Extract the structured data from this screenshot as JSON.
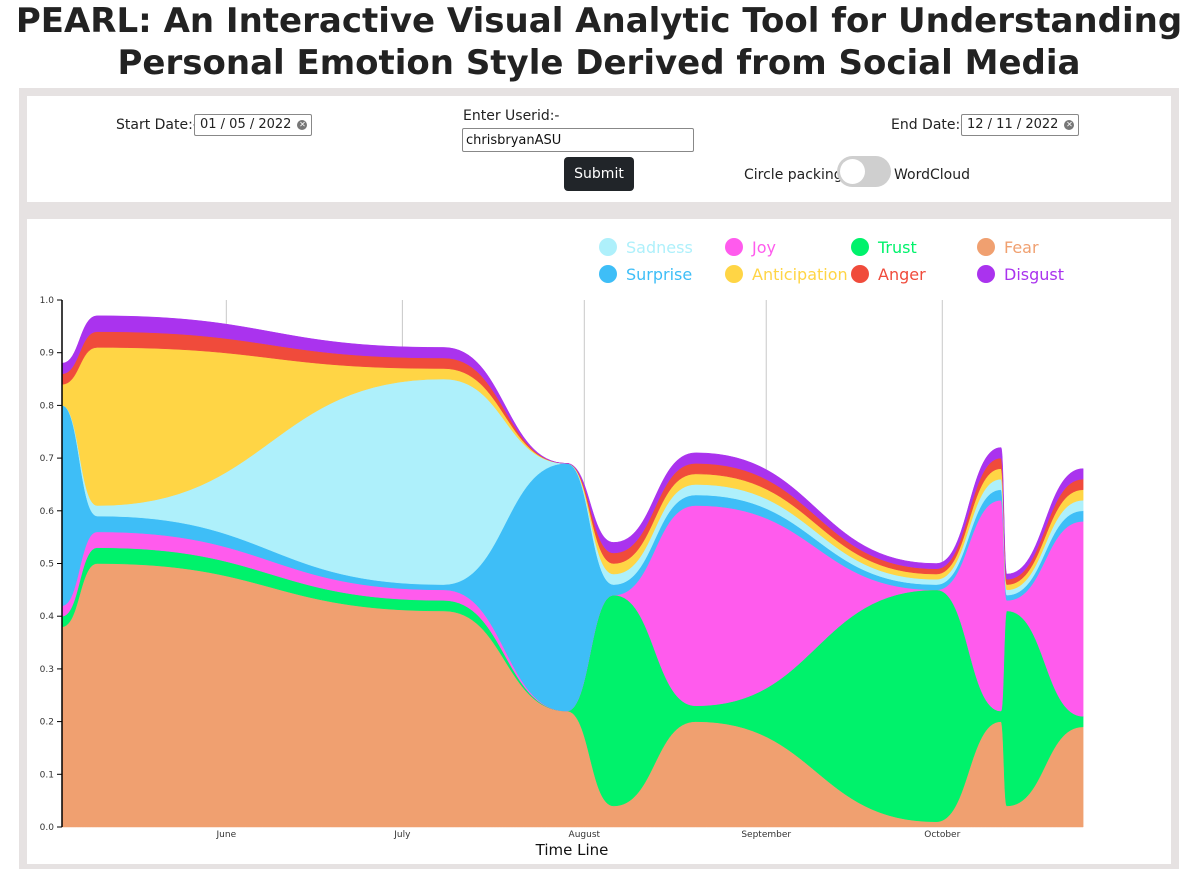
{
  "header": {
    "title_line1": "PEARL: An Interactive Visual Analytic Tool for Understanding",
    "title_line2": "Personal Emotion Style Derived from Social Media"
  },
  "controls": {
    "start_date_label": "Start Date:-",
    "start_date_value": "01 / 05 / 2022",
    "userid_label": "Enter Userid:-",
    "userid_value": "chrisbryanASU",
    "submit_label": "Submit",
    "end_date_label": "End Date:-",
    "end_date_value": "12 / 11 / 2022",
    "toggle_left_label": "Circle packing",
    "toggle_right_label": "WordCloud",
    "toggle_on": false
  },
  "chart_data": {
    "type": "area",
    "xlabel": "Time Line",
    "ylabel": "",
    "ylim": [
      0,
      1.0
    ],
    "y_ticks": [
      "0.0",
      "0.1",
      "0.2",
      "0.3",
      "0.4",
      "0.5",
      "0.6",
      "0.7",
      "0.8",
      "0.9",
      "1.0"
    ],
    "x_ticks": [
      "June",
      "July",
      "August",
      "September",
      "October"
    ],
    "grid": "vertical lines at month ticks",
    "legend_position": "top-right",
    "x": [
      "2022-05-04",
      "2022-05-10",
      "2022-07-08",
      "2022-07-29",
      "2022-08-06",
      "2022-08-20",
      "2022-09-30",
      "2022-10-11",
      "2022-10-12",
      "2022-10-25"
    ],
    "series": [
      {
        "name": "Fear",
        "color": "#f0a070",
        "values": [
          0.38,
          0.5,
          0.41,
          0.22,
          0.04,
          0.2,
          0.01,
          0.2,
          0.04,
          0.19
        ]
      },
      {
        "name": "Trust",
        "color": "#00f26b",
        "values": [
          0.02,
          0.03,
          0.02,
          0.0,
          0.4,
          0.03,
          0.44,
          0.02,
          0.37,
          0.02
        ]
      },
      {
        "name": "Joy",
        "color": "#ff5bed",
        "values": [
          0.02,
          0.03,
          0.02,
          0.0,
          0.0,
          0.38,
          0.0,
          0.4,
          0.02,
          0.37
        ]
      },
      {
        "name": "Surprise",
        "color": "#3ebef7",
        "values": [
          0.38,
          0.03,
          0.01,
          0.47,
          0.02,
          0.02,
          0.01,
          0.02,
          0.01,
          0.02
        ]
      },
      {
        "name": "Sadness",
        "color": "#aef0fb",
        "values": [
          0.0,
          0.02,
          0.39,
          0.0,
          0.02,
          0.02,
          0.01,
          0.02,
          0.01,
          0.02
        ]
      },
      {
        "name": "Anticipation",
        "color": "#ffd545",
        "values": [
          0.04,
          0.3,
          0.02,
          0.0,
          0.02,
          0.02,
          0.01,
          0.02,
          0.01,
          0.02
        ]
      },
      {
        "name": "Anger",
        "color": "#f04b3b",
        "values": [
          0.02,
          0.03,
          0.02,
          0.0,
          0.02,
          0.02,
          0.01,
          0.02,
          0.01,
          0.02
        ]
      },
      {
        "name": "Disgust",
        "color": "#aa33ee",
        "values": [
          0.02,
          0.03,
          0.02,
          0.0,
          0.02,
          0.02,
          0.01,
          0.02,
          0.01,
          0.02
        ]
      }
    ],
    "legend_order": [
      "Sadness",
      "Joy",
      "Trust",
      "Fear",
      "Surprise",
      "Anticipation",
      "Anger",
      "Disgust"
    ]
  }
}
